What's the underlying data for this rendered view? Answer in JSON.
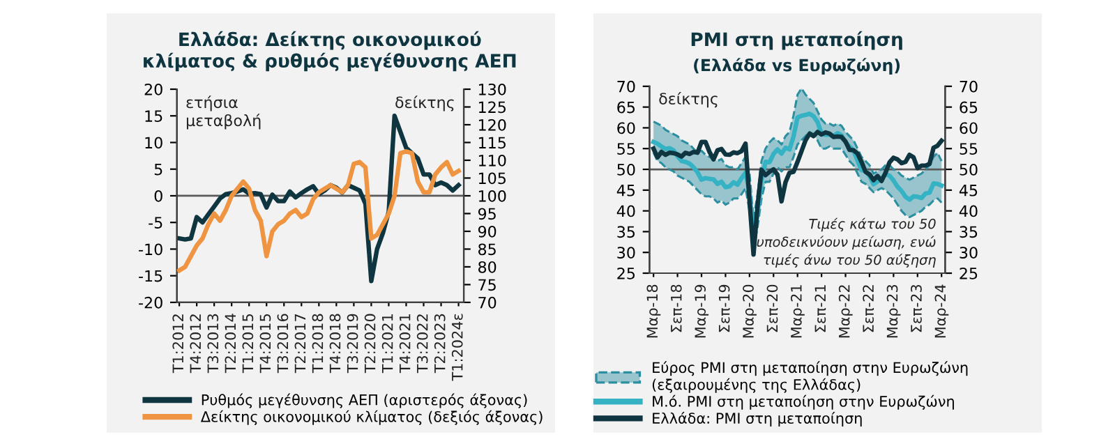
{
  "chart_data": [
    {
      "type": "line",
      "title": "Ελλάδα: Δείκτης οικονομικού\nκλίματος & ρυθμός μεγέθυνσης ΑΕΠ",
      "ylabel": "ετήσια\nμεταβολή",
      "y2label": "δείκτης",
      "categories": [
        "T1:2012",
        null,
        null,
        "T4:2012",
        null,
        null,
        "T3:2013",
        null,
        null,
        "T2:2014",
        null,
        null,
        "T1:2015",
        null,
        null,
        "T4:2015",
        null,
        null,
        "T3:2016",
        null,
        null,
        "T2:2017",
        null,
        null,
        "T1:2018",
        null,
        null,
        "T4:2018",
        null,
        null,
        "T3:2019",
        null,
        null,
        "T2:2020",
        null,
        null,
        "T1:2021",
        null,
        null,
        "T4:2021",
        null,
        null,
        "T3:2022",
        null,
        null,
        "T2:2023",
        null,
        null,
        "T1:2024ε"
      ],
      "series": [
        {
          "name": "Ρυθμός μεγέθυνσης ΑΕΠ (αριστερός άξονας)",
          "color": "#0f3540",
          "values": [
            -8,
            -8.2,
            -8,
            -4,
            -5,
            -3.5,
            -2,
            -0.5,
            0.3,
            0.5,
            0.8,
            1.2,
            0.4,
            0.5,
            0.3,
            -2.2,
            0.2,
            -1,
            -1,
            0.8,
            -0.3,
            0.5,
            1.2,
            1.8,
            0.3,
            1,
            2,
            1.5,
            0.6,
            2,
            1.5,
            1,
            -1.5,
            -16,
            -10,
            -7,
            -3,
            15,
            12,
            9,
            8,
            7,
            4,
            4,
            2,
            2.5,
            2,
            1,
            2
          ]
        },
        {
          "name": "Δείκτης οικονομικού κλίματος (δεξιός άξονας)",
          "color": "#ef9440",
          "axis": "y2",
          "values": [
            79,
            80,
            83,
            86,
            88,
            92,
            95,
            93,
            96,
            100,
            102,
            104,
            102,
            96,
            93,
            83,
            90,
            92,
            93,
            95,
            96,
            94,
            95,
            99,
            101,
            102,
            103,
            102,
            101,
            103,
            109,
            109.5,
            108,
            88,
            89,
            92,
            95,
            100,
            112,
            112.5,
            112,
            104,
            101,
            101,
            106,
            108,
            109.5,
            106,
            107
          ]
        }
      ],
      "ylim": [
        -20,
        20
      ],
      "yticks": [
        -20,
        -15,
        -10,
        -5,
        0,
        5,
        10,
        15,
        20
      ],
      "y2lim": [
        70,
        130
      ],
      "y2ticks": [
        70,
        75,
        80,
        85,
        90,
        95,
        100,
        105,
        110,
        115,
        120,
        125,
        130
      ],
      "ref_lines": [
        {
          "axis": "y",
          "value": 0,
          "color": "#595959"
        }
      ],
      "grid": false,
      "legend": "bottom"
    },
    {
      "type": "line",
      "title": "PMI στη μεταποίηση",
      "subtitle": "(Ελλάδα vs Ευρωζώνη)",
      "ylabel": "δείκτης",
      "categories": [
        "Μαρ-18",
        null,
        null,
        null,
        null,
        null,
        "Σεπ-18",
        null,
        null,
        null,
        null,
        null,
        "Μαρ-19",
        null,
        null,
        null,
        null,
        null,
        "Σεπ-19",
        null,
        null,
        null,
        null,
        null,
        "Μαρ-20",
        null,
        null,
        null,
        null,
        null,
        "Σεπ-20",
        null,
        null,
        null,
        null,
        null,
        "Μαρ-21",
        null,
        null,
        null,
        null,
        null,
        "Σεπ-21",
        null,
        null,
        null,
        null,
        null,
        "Μαρ-22",
        null,
        null,
        null,
        null,
        null,
        "Σεπ-22",
        null,
        null,
        null,
        null,
        null,
        "Μαρ-23",
        null,
        null,
        null,
        null,
        null,
        "Σεπ-23",
        null,
        null,
        null,
        null,
        null,
        "Μαρ-24"
      ],
      "series": [
        {
          "name": "Εύρος PMI στη μεταποίηση στην Ευρωζώνη\n(εξαιρουμένης της Ελλάδας)",
          "color": "#2b8fa0",
          "values": [
            61.5,
            61,
            60.5,
            59.5,
            59,
            58.5,
            58,
            57,
            56.5,
            56,
            55,
            54,
            54.5,
            53.5,
            53,
            52.5,
            52,
            52.5,
            51,
            50.5,
            50.5,
            50,
            51.5,
            53,
            49,
            38,
            44,
            52,
            55,
            56.5,
            57.5,
            57,
            56,
            58,
            59,
            63,
            68,
            69.5,
            68,
            67,
            66,
            64,
            62,
            61,
            61,
            60.5,
            61,
            60.5,
            59,
            58,
            57,
            55,
            53,
            52,
            51,
            49,
            49.5,
            50,
            51,
            51,
            50,
            49.5,
            48.5,
            48,
            47.5,
            48,
            48.5,
            49,
            50,
            51,
            53,
            54,
            52
          ],
          "line_style": "dashed"
        },
        {
          "color": "#2b8fa0",
          "line_style": "dashed",
          "values": [
            54,
            52,
            51.5,
            50.5,
            50,
            49.5,
            48.5,
            48,
            47.5,
            47,
            46,
            45,
            44,
            43.5,
            43.5,
            43,
            42,
            42.5,
            41.5,
            42,
            43,
            43,
            44,
            45.5,
            40,
            31,
            36,
            43,
            47,
            47,
            49,
            50.5,
            49.5,
            50.5,
            50.5,
            53,
            56,
            57,
            58,
            59,
            58.5,
            57,
            55,
            55,
            55.5,
            55,
            55,
            55,
            53.5,
            52,
            51,
            49,
            47,
            46.5,
            45.5,
            44.5,
            45,
            45.5,
            45,
            44,
            43,
            41.5,
            40,
            39,
            38.5,
            39,
            39.5,
            40,
            41,
            41.5,
            42.5,
            43,
            42
          ]
        },
        {
          "name": "Μ.ό. PMI στη μεταποίηση στην Ευρωζώνη",
          "color": "#35b3c4",
          "values": [
            56.6,
            56.2,
            55.5,
            54.9,
            55.1,
            54.6,
            53.2,
            52,
            51.8,
            51.4,
            50.5,
            49.3,
            47.5,
            47.9,
            47.7,
            47.6,
            46.5,
            47,
            45.7,
            45.9,
            46.9,
            46.3,
            47.9,
            49.2,
            44.5,
            33.4,
            39.4,
            47.4,
            51.8,
            51.7,
            53.7,
            54.8,
            53.8,
            55.2,
            54.8,
            57.9,
            62.5,
            62.9,
            63.1,
            63.4,
            62.8,
            61.4,
            58.6,
            58.3,
            58.4,
            58,
            58.7,
            58.2,
            56.5,
            55.5,
            54.6,
            52.1,
            49.8,
            49.6,
            48.4,
            46.4,
            47.1,
            47.8,
            48.8,
            48.5,
            47.3,
            45.8,
            44.8,
            43.4,
            42.7,
            43.5,
            43.4,
            43.1,
            44.2,
            44.4,
            46.6,
            46.5,
            46.1
          ]
        },
        {
          "name": "Ελλάδα: PMI στη μεταποίηση",
          "color": "#0f3540",
          "values": [
            55,
            52.9,
            54.2,
            53.5,
            54,
            53.9,
            53.6,
            53.1,
            54,
            53.7,
            54.2,
            54,
            56.6,
            56.6,
            54.2,
            52.4,
            54.6,
            54.9,
            53.6,
            53.5,
            54.1,
            53.9,
            54.4,
            56.2,
            42.5,
            29.5,
            41.1,
            49.9,
            48.6,
            49.4,
            50,
            48.7,
            42.3,
            46.9,
            49.2,
            49.4,
            51.8,
            54.4,
            57,
            58.6,
            58,
            59,
            58.4,
            58.9,
            58.6,
            57.8,
            57.9,
            57.8,
            56.7,
            54.7,
            54.6,
            53.8,
            51.8,
            49.4,
            48.8,
            47.4,
            48.4,
            47.2,
            49.2,
            51.7,
            52.8,
            52.4,
            51.5,
            51.8,
            53.5,
            52.9,
            50.3,
            50.9,
            50.9,
            51.3,
            55.2,
            55.7,
            56.9
          ]
        }
      ],
      "ylim": [
        25,
        70
      ],
      "yticks": [
        25,
        30,
        35,
        40,
        45,
        50,
        55,
        60,
        65,
        70
      ],
      "y2lim": [
        25,
        70
      ],
      "y2ticks": [
        25,
        30,
        35,
        40,
        45,
        50,
        55,
        60,
        65,
        70
      ],
      "ref_lines": [
        {
          "axis": "y",
          "value": 50,
          "color": "#595959"
        }
      ],
      "annotations": [
        "Τιμές κάτω του 50\nυποδεικνύουν μείωση, ενώ\nτιμές άνω του 50 αύξηση"
      ],
      "grid": false,
      "legend": "bottom"
    }
  ]
}
